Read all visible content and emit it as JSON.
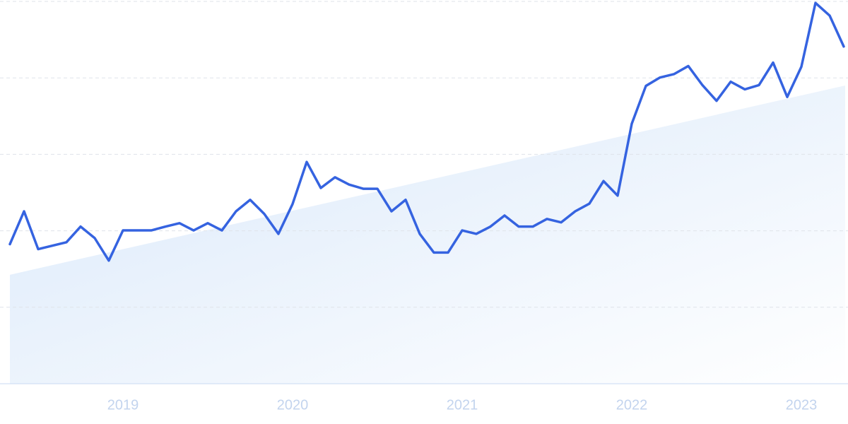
{
  "chart_data": {
    "type": "line",
    "categories": [
      null,
      null,
      null,
      null,
      null,
      null,
      null,
      null,
      "2019",
      null,
      null,
      null,
      null,
      null,
      null,
      null,
      null,
      null,
      null,
      null,
      "2020",
      null,
      null,
      null,
      null,
      null,
      null,
      null,
      null,
      null,
      null,
      null,
      "2021",
      null,
      null,
      null,
      null,
      null,
      null,
      null,
      null,
      null,
      null,
      null,
      "2022",
      null,
      null,
      null,
      null,
      null,
      null,
      null,
      null,
      null,
      null,
      null,
      "2023",
      null,
      null,
      null
    ],
    "series": [
      {
        "color": "#3563e0",
        "values": [
          36.5,
          45.1,
          35.2,
          36.1,
          37.0,
          41.1,
          38.1,
          32.2,
          40.1,
          40.1,
          40.1,
          41.1,
          42.0,
          40.1,
          42.0,
          40.1,
          45.1,
          48.1,
          44.4,
          39.2,
          47.0,
          58.0,
          51.2,
          54.0,
          52.1,
          51.0,
          51.0,
          45.1,
          48.1,
          39.2,
          34.3,
          34.3,
          40.1,
          39.2,
          41.1,
          44.0,
          41.1,
          41.1,
          43.1,
          42.2,
          45.1,
          47.1,
          53.0,
          49.2,
          68.0,
          77.9,
          80.1,
          81.0,
          83.1,
          78.1,
          74.0,
          79.0,
          77.0,
          78.1,
          84.0,
          75.0,
          82.9,
          99.6,
          96.3,
          88.2
        ]
      }
    ],
    "trend": {
      "color": "#d6e6fa",
      "values": [
        28.5,
        78
      ]
    },
    "ylim": [
      0,
      100
    ],
    "yticks": [
      0,
      20,
      40,
      60,
      80,
      100
    ],
    "grid": true
  }
}
